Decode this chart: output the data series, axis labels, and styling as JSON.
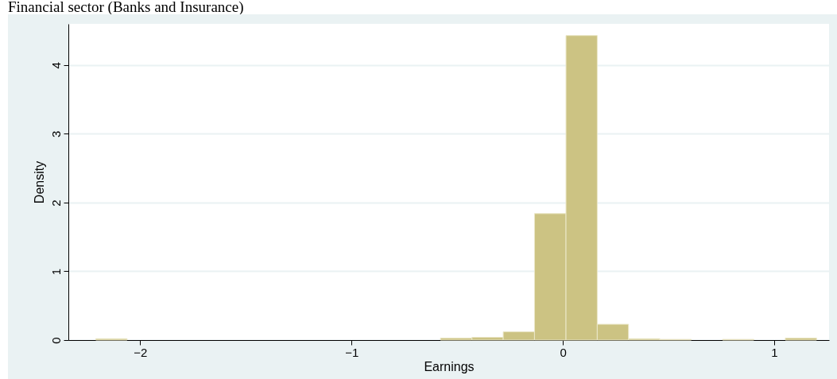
{
  "chart_data": {
    "type": "histogram",
    "title": "Financial sector (Banks and Insurance)",
    "xlabel": "Earnings",
    "ylabel": "Density",
    "bins": [
      -2.21,
      -2.062,
      -0.579,
      -0.43,
      -0.282,
      -0.134,
      0.015,
      0.163,
      0.311,
      0.459,
      0.608,
      0.756,
      0.904,
      1.053,
      1.201
    ],
    "values": [
      0.02,
      0,
      0.03,
      0.04,
      0.12,
      1.84,
      4.43,
      0.23,
      0.02,
      0.01,
      0,
      0.01,
      0,
      0.03
    ],
    "color": "#ccc383",
    "xlim": [
      -2.34,
      1.26
    ],
    "xticks": [
      -2,
      -1,
      0,
      1
    ],
    "ylim": [
      0,
      4.6
    ],
    "yticks": [
      0,
      1,
      2,
      3,
      4
    ],
    "grid": "y"
  }
}
